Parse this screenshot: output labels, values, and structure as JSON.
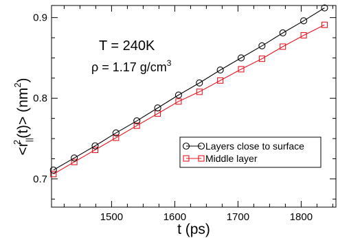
{
  "chart_data": {
    "type": "line",
    "title": "",
    "xlabel": "t (ps)",
    "ylabel_parts": {
      "prefix": "<r",
      "sub": "||",
      "sup": "2",
      "suffix": "(t)> (nm",
      "unit_sup": "2",
      "end": ")"
    },
    "xlim": [
      1405,
      1855
    ],
    "ylim": [
      0.665,
      0.915
    ],
    "x_ticks": [
      1500,
      1600,
      1700,
      1800
    ],
    "x_tick_labels": [
      "1500",
      "1600",
      "1700",
      "1800"
    ],
    "y_ticks": [
      0.7,
      0.8,
      0.9
    ],
    "y_tick_labels": [
      "0.7",
      "0.8",
      "0.9"
    ],
    "grid": false,
    "legend_position": "center-right",
    "annotations": {
      "temperature": "T = 240K",
      "density_prefix": "ρ = 1.17 g/cm",
      "density_sup": "3"
    },
    "series": [
      {
        "name": "Layers close to surface",
        "color": "#000000",
        "marker": "circle",
        "x": [
          1408,
          1441,
          1474,
          1507,
          1540,
          1573,
          1606,
          1639,
          1672,
          1705,
          1738,
          1771,
          1804,
          1837
        ],
        "y": [
          0.711,
          0.726,
          0.741,
          0.757,
          0.772,
          0.788,
          0.804,
          0.819,
          0.835,
          0.85,
          0.865,
          0.881,
          0.896,
          0.912
        ]
      },
      {
        "name": "Middle layer",
        "color": "#e8141e",
        "marker": "square",
        "x": [
          1408,
          1441,
          1474,
          1507,
          1540,
          1573,
          1606,
          1639,
          1672,
          1705,
          1738,
          1771,
          1804,
          1837
        ],
        "y": [
          0.706,
          0.721,
          0.736,
          0.751,
          0.766,
          0.781,
          0.796,
          0.808,
          0.822,
          0.836,
          0.849,
          0.864,
          0.878,
          0.891
        ]
      }
    ]
  }
}
